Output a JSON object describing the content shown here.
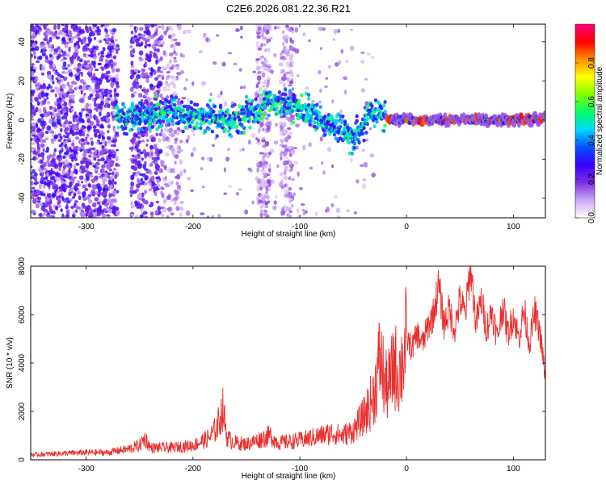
{
  "title": "C2E6.2026.081.22.36.R21",
  "chart_data": [
    {
      "type": "heatmap",
      "name": "spectrogram",
      "xlabel": "Height of straight line (km)",
      "ylabel": "Frequency (Hz)",
      "xlim": [
        -352,
        130
      ],
      "ylim": [
        -50,
        49
      ],
      "xticks": [
        -300,
        -200,
        -100,
        0,
        100
      ],
      "yticks": [
        -40,
        -20,
        0,
        20,
        40
      ],
      "colorbar": {
        "label": "Normalized spectral amplitude",
        "range": [
          0,
          1
        ],
        "ticks": [
          "0.0",
          "0.2",
          "0.4",
          "0.6",
          "0.8"
        ],
        "colors": [
          "#ffffff",
          "#c9a8f5",
          "#7d2ce0",
          "#3a00ff",
          "#0050ff",
          "#00d8ff",
          "#00ff6a",
          "#7fff00",
          "#ffff00",
          "#ff9000",
          "#ff0000",
          "#ff007f"
        ]
      },
      "ridge": {
        "x": [
          -270,
          -260,
          -250,
          -240,
          -225,
          -210,
          -195,
          -180,
          -170,
          -160,
          -150,
          -140,
          -130,
          -120,
          -110,
          -100,
          -90,
          -80,
          -70,
          -60,
          -50,
          -40,
          -35,
          -30,
          -20,
          -10,
          0,
          20,
          50,
          80,
          110,
          130
        ],
        "freq": [
          2,
          1,
          0,
          3,
          4,
          3,
          2,
          1,
          0,
          0,
          3,
          5,
          9,
          10,
          8,
          6,
          4,
          1,
          -2,
          -6,
          -9,
          -2,
          5,
          3,
          1,
          0,
          0,
          0,
          0,
          0,
          0,
          1
        ]
      }
    },
    {
      "type": "line",
      "name": "snr",
      "xlabel": "Height of straight line (km)",
      "ylabel": "SNR (10 * v/v)",
      "xlim": [
        -352,
        130
      ],
      "ylim": [
        0,
        8000
      ],
      "xticks": [
        -300,
        -200,
        -100,
        0,
        100
      ],
      "yticks": [
        0,
        2000,
        4000,
        6000,
        8000
      ],
      "color": "#e8302e",
      "x": [
        -352,
        -330,
        -300,
        -280,
        -260,
        -250,
        -245,
        -240,
        -230,
        -220,
        -200,
        -185,
        -178,
        -172,
        -168,
        -160,
        -150,
        -140,
        -128,
        -120,
        -100,
        -80,
        -70,
        -60,
        -50,
        -40,
        -35,
        -30,
        -25,
        -22,
        -20,
        -15,
        -12,
        -8,
        -5,
        0,
        5,
        10,
        15,
        20,
        25,
        30,
        35,
        40,
        45,
        50,
        55,
        60,
        65,
        70,
        75,
        80,
        85,
        90,
        95,
        100,
        105,
        110,
        115,
        120,
        125,
        130
      ],
      "y": [
        200,
        250,
        300,
        300,
        450,
        600,
        900,
        500,
        500,
        500,
        600,
        900,
        1300,
        2100,
        900,
        700,
        650,
        800,
        1000,
        700,
        800,
        1000,
        1100,
        1000,
        1200,
        1800,
        2200,
        2800,
        4200,
        3600,
        3000,
        3200,
        4000,
        3600,
        3800,
        5000,
        4600,
        5200,
        4800,
        5500,
        6000,
        7200,
        5600,
        6200,
        5400,
        6600,
        6000,
        8000,
        5600,
        6600,
        5400,
        6200,
        5000,
        6400,
        5200,
        6000,
        5000,
        6200,
        4800,
        6100,
        5200,
        3400
      ]
    }
  ]
}
